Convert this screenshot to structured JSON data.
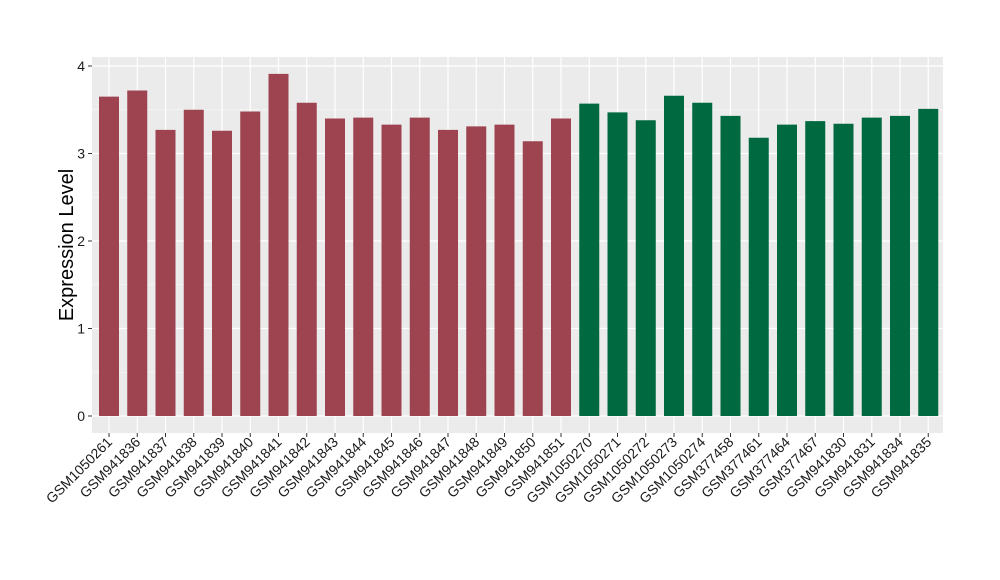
{
  "chart_data": {
    "type": "bar",
    "title": "",
    "xlabel": "",
    "ylabel": "Expression Level",
    "ylim": [
      -0.15,
      4.1
    ],
    "yticks": [
      0,
      1,
      2,
      3,
      4
    ],
    "ytick_labels": [
      "0",
      "1",
      "2",
      "3",
      "4"
    ],
    "grid": true,
    "legend": "none",
    "background_color": "#EBEBEB",
    "categories": [
      "GSM1050261",
      "GSM941836",
      "GSM941837",
      "GSM941838",
      "GSM941839",
      "GSM941840",
      "GSM941841",
      "GSM941842",
      "GSM941843",
      "GSM941844",
      "GSM941845",
      "GSM941846",
      "GSM941847",
      "GSM941848",
      "GSM941849",
      "GSM941850",
      "GSM941851",
      "GSM1050270",
      "GSM1050271",
      "GSM1050272",
      "GSM1050273",
      "GSM1050274",
      "GSM377458",
      "GSM377461",
      "GSM377464",
      "GSM377467",
      "GSM941830",
      "GSM941831",
      "GSM941834",
      "GSM941835"
    ],
    "values": [
      3.65,
      3.72,
      3.27,
      3.5,
      3.26,
      3.48,
      3.91,
      3.58,
      3.4,
      3.41,
      3.33,
      3.41,
      3.27,
      3.31,
      3.33,
      3.14,
      3.4,
      3.57,
      3.47,
      3.38,
      3.66,
      3.58,
      3.43,
      3.18,
      3.33,
      3.37,
      3.34,
      3.41,
      3.43,
      3.51
    ],
    "bar_colors": [
      "#9E4451",
      "#9E4451",
      "#9E4451",
      "#9E4451",
      "#9E4451",
      "#9E4451",
      "#9E4451",
      "#9E4451",
      "#9E4451",
      "#9E4451",
      "#9E4451",
      "#9E4451",
      "#9E4451",
      "#9E4451",
      "#9E4451",
      "#9E4451",
      "#9E4451",
      "#006940",
      "#006940",
      "#006940",
      "#006940",
      "#006940",
      "#006940",
      "#006940",
      "#006940",
      "#006940",
      "#006940",
      "#006940",
      "#006940",
      "#006940"
    ]
  }
}
